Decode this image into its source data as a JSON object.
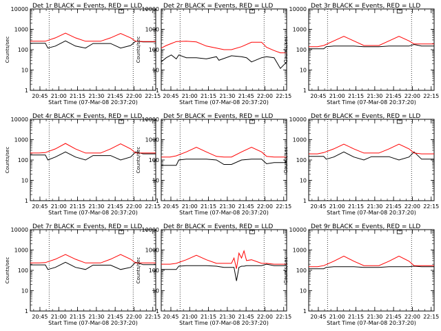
{
  "x_label": "Start Time (07-Mar-08 20:37:20)",
  "y_label": "Counts/sec",
  "x_ticks": [
    "20:45",
    "21:00",
    "21:15",
    "21:30",
    "21:45",
    "22:00",
    "22:15"
  ],
  "y_ticks": [
    "1",
    "10",
    "100",
    "1000",
    "10000"
  ],
  "series_colors": {
    "events": "#000000",
    "lld": "#ff0000"
  },
  "chart_data": [
    {
      "type": "line",
      "title": "Det 1r BLACK = Events, RED = LLD",
      "xlabel": "Start Time (07-Mar-08 20:37:20)",
      "ylabel": "Counts/sec",
      "x_range_minutes_after_start": [
        0,
        100
      ],
      "ylim": [
        1,
        10000
      ],
      "yscale": "log",
      "vlines_minutes_after_start": [
        15,
        82
      ],
      "series": [
        {
          "color": "#000000",
          "x": [
            0,
            7,
            12,
            14,
            20,
            28,
            36,
            44,
            50,
            56,
            64,
            72,
            80,
            84,
            90,
            100
          ],
          "y": [
            205,
            205,
            205,
            120,
            150,
            270,
            150,
            120,
            200,
            200,
            200,
            120,
            160,
            260,
            240,
            240
          ]
        },
        {
          "color": "#ff0000",
          "x": [
            0,
            7,
            12,
            20,
            28,
            36,
            44,
            50,
            56,
            64,
            72,
            80,
            84,
            90,
            100
          ],
          "y": [
            260,
            260,
            260,
            380,
            650,
            380,
            260,
            260,
            260,
            380,
            620,
            380,
            260,
            250,
            250
          ]
        }
      ]
    },
    {
      "type": "line",
      "title": "Det 2r BLACK = Events, RED = LLD",
      "xlabel": "Start Time (07-Mar-08 20:37:20)",
      "ylabel": "Counts/sec",
      "x_range_minutes_after_start": [
        0,
        100
      ],
      "ylim": [
        1,
        10000
      ],
      "yscale": "log",
      "vlines_minutes_after_start": [
        15,
        82
      ],
      "series": [
        {
          "color": "#000000",
          "x": [
            0,
            4,
            8,
            12,
            14,
            20,
            28,
            36,
            44,
            46,
            56,
            64,
            68,
            72,
            80,
            84,
            90,
            95,
            100
          ],
          "y": [
            25,
            40,
            55,
            35,
            55,
            40,
            40,
            35,
            45,
            30,
            50,
            45,
            40,
            25,
            40,
            45,
            40,
            12,
            25
          ]
        },
        {
          "color": "#ff0000",
          "x": [
            0,
            4,
            8,
            12,
            20,
            28,
            36,
            44,
            50,
            56,
            64,
            72,
            80,
            84,
            90,
            95,
            100
          ],
          "y": [
            120,
            160,
            200,
            250,
            260,
            240,
            150,
            120,
            100,
            100,
            140,
            230,
            230,
            130,
            90,
            70,
            70
          ]
        }
      ]
    },
    {
      "type": "line",
      "title": "Det 3r BLACK = Events, RED = LLD",
      "xlabel": "Start Time (07-Mar-08 20:37:20)",
      "ylabel": "Counts/sec",
      "x_range_minutes_after_start": [
        0,
        100
      ],
      "ylim": [
        1,
        10000
      ],
      "yscale": "log",
      "vlines_minutes_after_start": [
        15,
        82
      ],
      "series": [
        {
          "color": "#000000",
          "x": [
            0,
            7,
            12,
            14,
            20,
            28,
            36,
            44,
            50,
            56,
            64,
            72,
            80,
            84,
            90,
            100
          ],
          "y": [
            110,
            110,
            110,
            140,
            150,
            150,
            150,
            140,
            140,
            140,
            150,
            150,
            150,
            180,
            150,
            150
          ]
        },
        {
          "color": "#ff0000",
          "x": [
            0,
            7,
            12,
            20,
            28,
            36,
            44,
            50,
            56,
            64,
            72,
            80,
            84,
            90,
            100
          ],
          "y": [
            140,
            140,
            160,
            270,
            450,
            270,
            160,
            160,
            160,
            270,
            450,
            270,
            190,
            190,
            190
          ]
        }
      ]
    },
    {
      "type": "line",
      "title": "Det 4r BLACK = Events, RED = LLD",
      "xlabel": "Start Time (07-Mar-08 20:37:20)",
      "ylabel": "Counts/sec",
      "x_range_minutes_after_start": [
        0,
        100
      ],
      "ylim": [
        1,
        10000
      ],
      "yscale": "log",
      "vlines_minutes_after_start": [
        15,
        82
      ],
      "series": [
        {
          "color": "#000000",
          "x": [
            0,
            7,
            12,
            14,
            20,
            28,
            36,
            44,
            50,
            56,
            64,
            72,
            80,
            84,
            90,
            100
          ],
          "y": [
            175,
            175,
            175,
            100,
            140,
            250,
            140,
            100,
            165,
            165,
            165,
            100,
            140,
            250,
            200,
            200
          ]
        },
        {
          "color": "#ff0000",
          "x": [
            0,
            7,
            12,
            20,
            28,
            36,
            44,
            50,
            56,
            64,
            72,
            80,
            84,
            90,
            100
          ],
          "y": [
            220,
            220,
            230,
            350,
            650,
            350,
            220,
            220,
            220,
            350,
            620,
            350,
            220,
            220,
            220
          ]
        }
      ]
    },
    {
      "type": "line",
      "title": "Det 5r BLACK = Events, RED = LLD",
      "xlabel": "Start Time (07-Mar-08 20:37:20)",
      "ylabel": "Counts/sec",
      "x_range_minutes_after_start": [
        0,
        100
      ],
      "ylim": [
        1,
        10000
      ],
      "yscale": "log",
      "vlines_minutes_after_start": [
        15,
        82
      ],
      "series": [
        {
          "color": "#000000",
          "x": [
            0,
            7,
            12,
            14,
            20,
            28,
            36,
            44,
            50,
            56,
            64,
            72,
            80,
            84,
            90,
            100
          ],
          "y": [
            55,
            55,
            55,
            100,
            110,
            110,
            110,
            100,
            60,
            60,
            100,
            110,
            110,
            65,
            75,
            75
          ]
        },
        {
          "color": "#ff0000",
          "x": [
            0,
            7,
            12,
            20,
            28,
            36,
            44,
            50,
            56,
            64,
            72,
            80,
            84,
            90,
            100
          ],
          "y": [
            140,
            140,
            160,
            250,
            420,
            250,
            150,
            140,
            140,
            250,
            420,
            250,
            150,
            140,
            140
          ]
        }
      ]
    },
    {
      "type": "line",
      "title": "Det 6r BLACK = Events, RED = LLD",
      "xlabel": "Start Time (07-Mar-08 20:37:20)",
      "ylabel": "Counts/sec",
      "x_range_minutes_after_start": [
        0,
        100
      ],
      "ylim": [
        1,
        10000
      ],
      "yscale": "log",
      "vlines_minutes_after_start": [
        15,
        82
      ],
      "series": [
        {
          "color": "#000000",
          "x": [
            0,
            7,
            12,
            14,
            20,
            28,
            36,
            44,
            50,
            56,
            64,
            72,
            80,
            84,
            90,
            100
          ],
          "y": [
            150,
            150,
            150,
            110,
            140,
            250,
            140,
            100,
            145,
            145,
            145,
            100,
            140,
            250,
            110,
            110
          ]
        },
        {
          "color": "#ff0000",
          "x": [
            0,
            7,
            12,
            20,
            28,
            36,
            44,
            50,
            56,
            64,
            72,
            80,
            84,
            90,
            100
          ],
          "y": [
            200,
            200,
            230,
            350,
            600,
            350,
            220,
            220,
            220,
            350,
            600,
            350,
            220,
            200,
            200
          ]
        }
      ]
    },
    {
      "type": "line",
      "title": "Det 7r BLACK = Events, RED = LLD",
      "xlabel": "Start Time (07-Mar-08 20:37:20)",
      "ylabel": "Counts/sec",
      "x_range_minutes_after_start": [
        0,
        100
      ],
      "ylim": [
        1,
        10000
      ],
      "yscale": "log",
      "vlines_minutes_after_start": [
        15,
        82
      ],
      "series": [
        {
          "color": "#000000",
          "x": [
            0,
            7,
            12,
            14,
            20,
            28,
            36,
            44,
            50,
            56,
            64,
            72,
            80,
            84,
            90,
            100
          ],
          "y": [
            185,
            185,
            185,
            110,
            140,
            250,
            140,
            110,
            180,
            180,
            180,
            110,
            140,
            250,
            190,
            190
          ]
        },
        {
          "color": "#ff0000",
          "x": [
            0,
            7,
            12,
            20,
            28,
            36,
            44,
            50,
            56,
            64,
            72,
            80,
            84,
            90,
            100
          ],
          "y": [
            230,
            230,
            240,
            350,
            600,
            350,
            230,
            230,
            230,
            350,
            600,
            350,
            230,
            230,
            230
          ]
        }
      ]
    },
    {
      "type": "line",
      "title": "Det 8r BLACK = Events, RED = LLD",
      "xlabel": "Start Time (07-Mar-08 20:37:20)",
      "ylabel": "Counts/sec",
      "x_range_minutes_after_start": [
        0,
        100
      ],
      "ylim": [
        1,
        10000
      ],
      "yscale": "log",
      "vlines_minutes_after_start": [
        15,
        82
      ],
      "series": [
        {
          "color": "#000000",
          "x": [
            0,
            7,
            12,
            14,
            20,
            28,
            36,
            44,
            50,
            56,
            58,
            60,
            62,
            64,
            66,
            68,
            72,
            80,
            84,
            90,
            100
          ],
          "y": [
            110,
            110,
            110,
            160,
            170,
            170,
            170,
            160,
            140,
            140,
            140,
            30,
            140,
            160,
            160,
            170,
            170,
            170,
            200,
            170,
            170
          ]
        },
        {
          "color": "#ff0000",
          "x": [
            0,
            7,
            12,
            20,
            28,
            36,
            44,
            50,
            56,
            58,
            60,
            62,
            64,
            66,
            68,
            72,
            80,
            84,
            90,
            100
          ],
          "y": [
            200,
            200,
            220,
            330,
            550,
            330,
            220,
            220,
            220,
            400,
            120,
            700,
            400,
            900,
            300,
            330,
            220,
            220,
            200,
            200
          ]
        }
      ]
    },
    {
      "type": "line",
      "title": "Det 9r BLACK = Events, RED = LLD",
      "xlabel": "Start Time (07-Mar-08 20:37:20)",
      "ylabel": "Counts/sec",
      "x_range_minutes_after_start": [
        0,
        100
      ],
      "ylim": [
        1,
        10000
      ],
      "yscale": "log",
      "vlines_minutes_after_start": [
        15,
        82
      ],
      "series": [
        {
          "color": "#000000",
          "x": [
            0,
            7,
            12,
            14,
            20,
            28,
            36,
            44,
            50,
            56,
            64,
            72,
            80,
            84,
            90,
            100
          ],
          "y": [
            120,
            120,
            120,
            140,
            150,
            150,
            150,
            140,
            140,
            140,
            150,
            150,
            150,
            160,
            150,
            150
          ]
        },
        {
          "color": "#ff0000",
          "x": [
            0,
            7,
            12,
            20,
            28,
            36,
            44,
            50,
            56,
            64,
            72,
            80,
            84,
            90,
            100
          ],
          "y": [
            150,
            150,
            170,
            280,
            500,
            280,
            170,
            170,
            170,
            280,
            500,
            280,
            170,
            170,
            170
          ]
        }
      ]
    }
  ]
}
